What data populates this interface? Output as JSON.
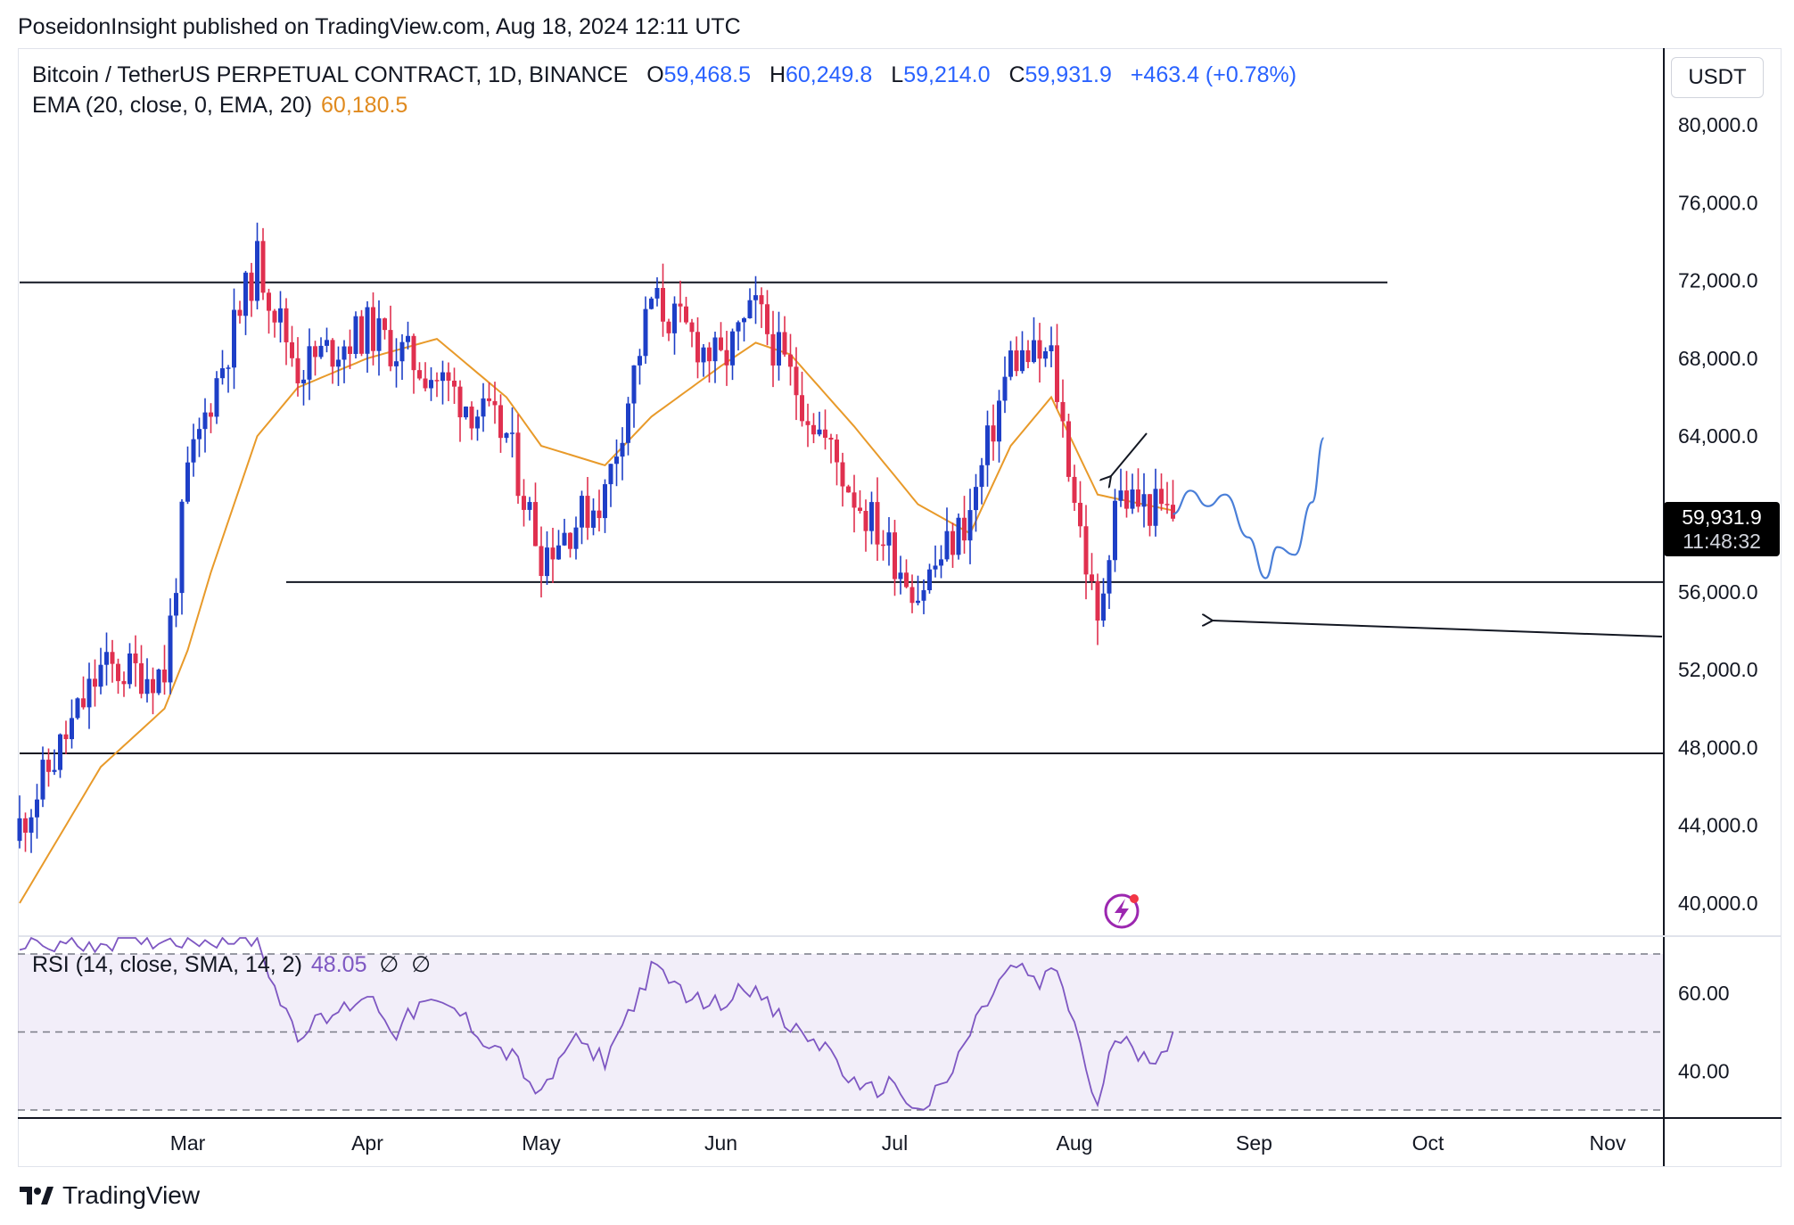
{
  "header": {
    "published_line": "PoseidonInsight published on TradingView.com, Aug 18, 2024 12:11 UTC"
  },
  "legend": {
    "symbol": "Bitcoin / TetherUS PERPETUAL CONTRACT, 1D, BINANCE",
    "open_label": "O",
    "open_value": "59,468.5",
    "high_label": "H",
    "high_value": "60,249.8",
    "low_label": "L",
    "low_value": "59,214.0",
    "close_label": "C",
    "close_value": "59,931.9",
    "change": "+463.4 (+0.78%)",
    "ema_label": "EMA (20, close, 0, EMA, 20)",
    "ema_value": "60,180.5"
  },
  "rsi_legend": {
    "label": "RSI (14, close, SMA, 14, 2)",
    "value": "48.05",
    "null1": "∅",
    "null2": "∅"
  },
  "currency_button": "USDT",
  "last_price": {
    "price": "59,931.9",
    "countdown": "11:48:32"
  },
  "brand": {
    "logo_icon": "tradingview-logo-icon",
    "name": "TradingView"
  },
  "colors": {
    "up": "#1e3fc7",
    "down": "#e0304f",
    "ema": "#e89a2a",
    "rsi": "#7e57c2",
    "projection": "#4a7fd8"
  },
  "chart_data": {
    "type": "candlestick",
    "price_axis": {
      "ylim": [
        39000,
        82000
      ],
      "ticks": [
        "80,000.0",
        "76,000.0",
        "72,000.0",
        "68,000.0",
        "64,000.0",
        "56,000.0",
        "52,000.0",
        "48,000.0",
        "44,000.0",
        "40,000.0"
      ],
      "tick_values": [
        80000,
        76000,
        72000,
        68000,
        64000,
        56000,
        52000,
        48000,
        44000,
        40000
      ]
    },
    "time_axis": {
      "labels": [
        "Mar",
        "Apr",
        "May",
        "Jun",
        "Jul",
        "Aug",
        "Sep",
        "Oct",
        "Nov"
      ],
      "dates": [
        "2024-03-01",
        "2024-04-01",
        "2024-05-01",
        "2024-06-01",
        "2024-07-01",
        "2024-08-01",
        "2024-09-01",
        "2024-10-01",
        "2024-11-01"
      ]
    },
    "horizontal_levels": [
      {
        "value": 71900,
        "from": "2024-02-01",
        "to": "2024-09-24"
      },
      {
        "value": 56500,
        "from": "2024-03-18",
        "to": "2024-11-30"
      },
      {
        "value": 47700,
        "from": "2024-02-01",
        "to": "2024-11-30"
      }
    ],
    "key_dates": [
      {
        "date": "2024-02-01",
        "close": 44000,
        "ema": 40000
      },
      {
        "date": "2024-02-15",
        "close": 52000,
        "ema": 47000
      },
      {
        "date": "2024-02-26",
        "close": 51800,
        "ema": 50000
      },
      {
        "date": "2024-03-01",
        "close": 62000,
        "ema": 53000
      },
      {
        "date": "2024-03-05",
        "close": 66000,
        "ema": 57000
      },
      {
        "date": "2024-03-13",
        "close": 73000,
        "ema": 64000
      },
      {
        "date": "2024-03-20",
        "close": 67500,
        "ema": 66500
      },
      {
        "date": "2024-04-01",
        "close": 69500,
        "ema": 68000
      },
      {
        "date": "2024-04-13",
        "close": 67000,
        "ema": 69000
      },
      {
        "date": "2024-04-25",
        "close": 64000,
        "ema": 66000
      },
      {
        "date": "2024-05-01",
        "close": 58000,
        "ema": 63500
      },
      {
        "date": "2024-05-12",
        "close": 61000,
        "ema": 62500
      },
      {
        "date": "2024-05-20",
        "close": 71000,
        "ema": 65000
      },
      {
        "date": "2024-06-01",
        "close": 67700,
        "ema": 67600
      },
      {
        "date": "2024-06-07",
        "close": 70500,
        "ema": 68800
      },
      {
        "date": "2024-06-13",
        "close": 67000,
        "ema": 68200
      },
      {
        "date": "2024-06-24",
        "close": 61000,
        "ema": 64500
      },
      {
        "date": "2024-07-05",
        "close": 56000,
        "ema": 60500
      },
      {
        "date": "2024-07-14",
        "close": 60000,
        "ema": 59000
      },
      {
        "date": "2024-07-21",
        "close": 68000,
        "ema": 63500
      },
      {
        "date": "2024-07-28",
        "close": 68000,
        "ema": 66000
      },
      {
        "date": "2024-08-05",
        "close": 54000,
        "ema": 61000
      },
      {
        "date": "2024-08-08",
        "close": 61000,
        "ema": 60800
      },
      {
        "date": "2024-08-18",
        "close": 59931.9,
        "ema": 60180.5
      }
    ],
    "projection_path": [
      {
        "date": "2024-08-18",
        "price": 60000
      },
      {
        "date": "2024-08-21",
        "price": 61200
      },
      {
        "date": "2024-08-24",
        "price": 60400
      },
      {
        "date": "2024-08-27",
        "price": 61000
      },
      {
        "date": "2024-08-31",
        "price": 58800
      },
      {
        "date": "2024-09-03",
        "price": 56700
      },
      {
        "date": "2024-09-05",
        "price": 58300
      },
      {
        "date": "2024-09-08",
        "price": 57900
      },
      {
        "date": "2024-09-11",
        "price": 60600
      },
      {
        "date": "2024-09-13",
        "price": 63900
      }
    ],
    "rsi": {
      "ylim": [
        20,
        80
      ],
      "ticks": [
        "60.00",
        "40.00"
      ],
      "tick_values": [
        60,
        40
      ],
      "bands": [
        70,
        50,
        30
      ],
      "points": [
        {
          "date": "2024-02-01",
          "value": 72
        },
        {
          "date": "2024-03-01",
          "value": 74
        },
        {
          "date": "2024-03-13",
          "value": 74
        },
        {
          "date": "2024-03-17",
          "value": 58
        },
        {
          "date": "2024-03-20",
          "value": 50
        },
        {
          "date": "2024-03-26",
          "value": 54
        },
        {
          "date": "2024-04-01",
          "value": 60
        },
        {
          "date": "2024-04-06",
          "value": 50
        },
        {
          "date": "2024-04-10",
          "value": 57
        },
        {
          "date": "2024-04-16",
          "value": 56
        },
        {
          "date": "2024-04-22",
          "value": 47
        },
        {
          "date": "2024-04-26",
          "value": 44
        },
        {
          "date": "2024-05-01",
          "value": 33
        },
        {
          "date": "2024-05-06",
          "value": 48
        },
        {
          "date": "2024-05-12",
          "value": 43
        },
        {
          "date": "2024-05-20",
          "value": 66
        },
        {
          "date": "2024-05-28",
          "value": 58
        },
        {
          "date": "2024-06-01",
          "value": 57
        },
        {
          "date": "2024-06-05",
          "value": 63
        },
        {
          "date": "2024-06-12",
          "value": 52
        },
        {
          "date": "2024-06-20",
          "value": 45
        },
        {
          "date": "2024-06-25",
          "value": 34
        },
        {
          "date": "2024-07-01",
          "value": 37
        },
        {
          "date": "2024-07-05",
          "value": 29
        },
        {
          "date": "2024-07-10",
          "value": 37
        },
        {
          "date": "2024-07-14",
          "value": 50
        },
        {
          "date": "2024-07-19",
          "value": 63
        },
        {
          "date": "2024-07-22",
          "value": 67
        },
        {
          "date": "2024-07-26",
          "value": 62
        },
        {
          "date": "2024-07-29",
          "value": 66
        },
        {
          "date": "2024-08-01",
          "value": 52
        },
        {
          "date": "2024-08-05",
          "value": 30
        },
        {
          "date": "2024-08-08",
          "value": 49
        },
        {
          "date": "2024-08-12",
          "value": 45
        },
        {
          "date": "2024-08-15",
          "value": 44
        },
        {
          "date": "2024-08-18",
          "value": 48.05
        }
      ]
    }
  }
}
